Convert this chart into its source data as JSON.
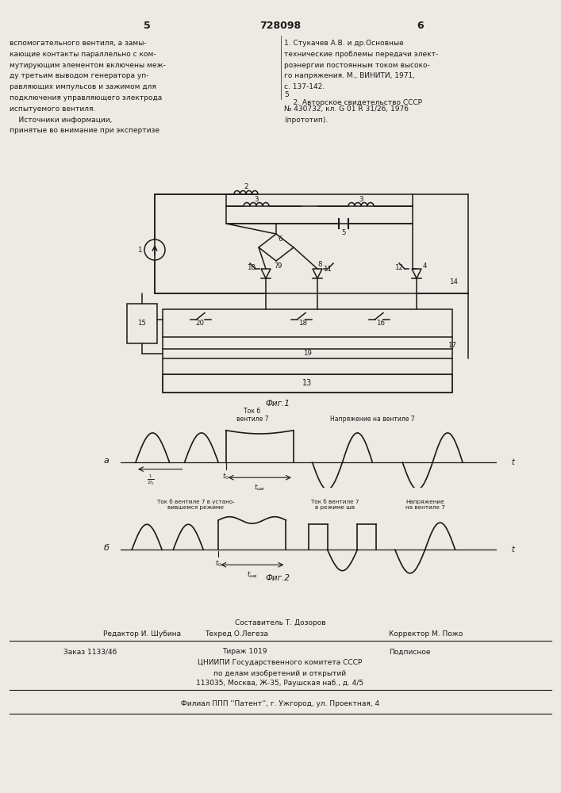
{
  "bg": "#ede9e3",
  "lc": "#1a1a1a",
  "tc": "#1a1a1a",
  "patent_number": "728098",
  "page_left": "5",
  "page_right": "6",
  "fig1_label": "Фиг.1",
  "fig2_label": "Фиг.2",
  "left_col_lines": [
    "вспомогательного вентиля, а замы-",
    "кающие контакты параллельно с ком-",
    "мутирующим элементом включены меж-",
    "ду третьим выводом генератора уп-",
    "равляющих импульсов и зажимом для",
    "подключения управляющего электрода",
    "испытуемого вентиля.",
    "    Источники информации,",
    "принятые во внимание при экспертизе"
  ],
  "right_col_lines": [
    "1. Стукачев А.В. и др.Основные",
    "технические проблемы передачи элект-",
    "роэнергии постоянным током высоко-",
    "го напряжения. М., ВИНИТИ, 1971,",
    "с. 137-142.",
    "    2. Авторское свидетельство СССР",
    "№ 430732, кл. G 01 R 31/26, 1976",
    "(прототип)."
  ],
  "footer": {
    "line0": "Составитель Т. Дозоров",
    "line1_left": "Редактор И. Шубина",
    "line1_mid": "Техред О.Легеза",
    "line1_right": "Корректор М. Пожо",
    "line2_a": "Заказ 1133/46",
    "line2_b": "Тираж 1019",
    "line2_c": "Подписное",
    "line3": "ЦНИИПИ Государственного комитета СССР",
    "line4": "по делам изобретений и открытий",
    "line5": "113035, Москва, Ж-35, Раушская наб., д. 4/5",
    "line6": "Филиал ППП ''Патент'', г. Ужгород, ул. Проектная, 4"
  }
}
